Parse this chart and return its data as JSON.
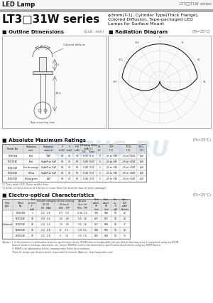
{
  "title_left": "LED Lamp",
  "title_right": "LT3□31W series",
  "series_name": "LT3□31W series",
  "subtitle_lines": [
    "φ3mm(T-1), Cylinder Type(Thick Flange),",
    "Colored Diffusion, Tape-packaged LED",
    "Lamps for Surface Mount"
  ],
  "outline_label": "■ Outline Dimensions",
  "outline_unit": "(Unit : mm)",
  "radiation_label": "■ Radiation Diagram",
  "radiation_unit": "(TA=25°C)",
  "abs_max_label": "■ Absolute Maximum Ratings",
  "abs_max_unit": "(TA=25°C)",
  "electro_label": "■ Electro-optical Characteristics",
  "electro_unit": "(TA=25°C)",
  "watermark1": "KAZUS.RU",
  "watermark2": "ЭЛЕКТРОННЫЙ  ПОРТАЛ",
  "bg_color": "#ffffff",
  "bar_color": "#999999",
  "abs_max_headers": [
    "Model No.",
    "Radiation\ncolor",
    "Radiation\nmaterial",
    "P\n(mW)",
    "IF\n(mA)",
    "IFM\n(mA)",
    "Derating factor\n(mA/°C)\nDC    Pulse",
    "VR\n(V)",
    "TOP\n(°C)",
    "TSTG\n(°C)",
    "TSOL\n(°C)"
  ],
  "abs_max_rows": [
    [
      "LT3P31W",
      "Red",
      "GaP",
      "23",
      "10",
      "70",
      "0.15  0.47",
      "5",
      "-25 to +85",
      "-25 to +100",
      "260"
    ],
    [
      "LT3C31W",
      "Red",
      "GaAsP on GaP",
      "84",
      "30",
      "50",
      "0.48  0.67",
      "5",
      "-25 to +85",
      "-25 to +100",
      "260"
    ],
    [
      "LT3Q31W",
      "Scarlet-orange",
      "GaAsP on GaP",
      "84",
      "30",
      "50",
      "0.48  0.67",
      "5",
      "-25 to +85",
      "-25 to +100",
      "260"
    ],
    [
      "LT3H31W",
      "Yellow",
      "GaAsP on GaP",
      "84",
      "30",
      "50",
      "0.48  0.67",
      "5",
      "-25 to +85",
      "-25 to +100",
      "260"
    ],
    [
      "LT3G31W",
      "Yellow-green",
      "GaP",
      "84",
      "30",
      "50",
      "0.48  0.67",
      "5",
      "-25 to +85",
      "-25 to +100",
      "260"
    ]
  ],
  "abs_max_footnotes": [
    "*1 Duty ratio=1/5, Pulse width=1ms",
    "*2 3mm or the junction of 1.6mm or more from the bottom face of resin package)"
  ],
  "electro_headers": [
    "Color\ntype",
    "Model\nNo.",
    "Test\ncurrent\nIF\n(mA)",
    "Forward voltage\nVF (V)\nTYP   MAX",
    "Luminous intensity\nIV (mcd)\nMIN    TYP",
    "Opt.axis\nillum.(lx)\nMIN   TYP",
    "Peak\nwavel.\nλP\n(nm)",
    "Dom.\nwavel.\nλD\n(nm)",
    "Rev.\ncur.\nIR\n(μA)",
    "Spec.\nhalf\nwidth\nΔλ(nm)"
  ],
  "electro_rows": [
    [
      "Colored",
      "LT3P31W",
      "2",
      "2.2   2.8",
      "0.5    2.0",
      "0.35  1.4",
      "700",
      "648",
      "10",
      "23"
    ],
    [
      "",
      "LT3C31W",
      "10",
      "2.0   2.5",
      "13     20",
      "9.1   14",
      "627",
      "617",
      "10",
      "23"
    ],
    [
      "",
      "LT3Q31W",
      "10",
      "2.0   2.5",
      "13     20",
      "9.1   14",
      "617",
      "608",
      "10",
      "17"
    ],
    [
      "",
      "LT3H31W",
      "10",
      "2.2   2.8",
      "8      13",
      "5.6  9.1",
      "590",
      "585",
      "10",
      "23"
    ],
    [
      "",
      "LT3G31W",
      "10",
      "2.2   2.8",
      "5      10",
      "3.5  7.0",
      "565",
      "568",
      "10",
      "35"
    ]
  ],
  "footer_lines": [
    "(Notice)  1. In the interest of confirmation to device specification sheets, ROHM takes no responsibility for any defects that may occur in equipment using any ROHM",
    "              devices shown in catalogs, data books, etc. Contact ROHM to confirm the latest device specification sheets before using any ROHM device.",
    "              2. ROHM is an abbreviation for the company name Rohm Semiconductor.",
    "              *Goto for always specification device is provided for Internet (Address)  http://www.rohm.com/"
  ]
}
